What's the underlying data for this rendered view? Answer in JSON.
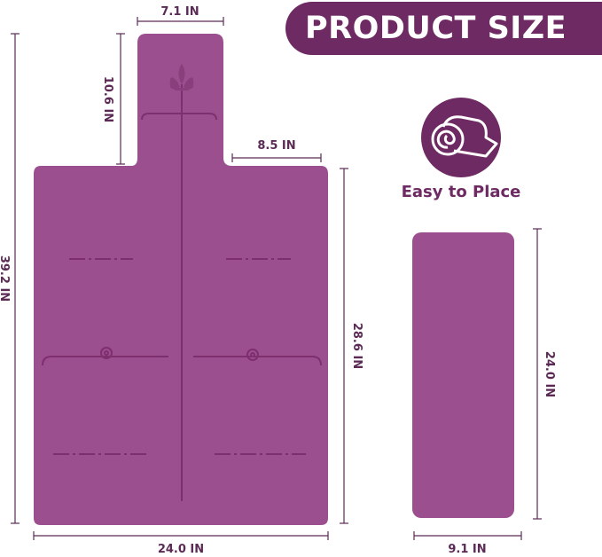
{
  "banner": {
    "title": "PRODUCT SIZE"
  },
  "feature": {
    "icon": "rolled-mat-icon",
    "label": "Easy to Place"
  },
  "colors": {
    "mat": "#9b4f8e",
    "accent": "#6e2a62",
    "dimension_line": "#5b2a55"
  },
  "large_mat": {
    "handle_width": "7.1 IN",
    "handle_length": "10.6 IN",
    "shoulder_width": "8.5 IN",
    "total_length": "39.2 IN",
    "body_length": "28.6 IN",
    "body_width": "24.0 IN",
    "emblem": "fleur-de-lis-icon"
  },
  "small_mat": {
    "length": "24.0 IN",
    "width": "9.1 IN"
  }
}
